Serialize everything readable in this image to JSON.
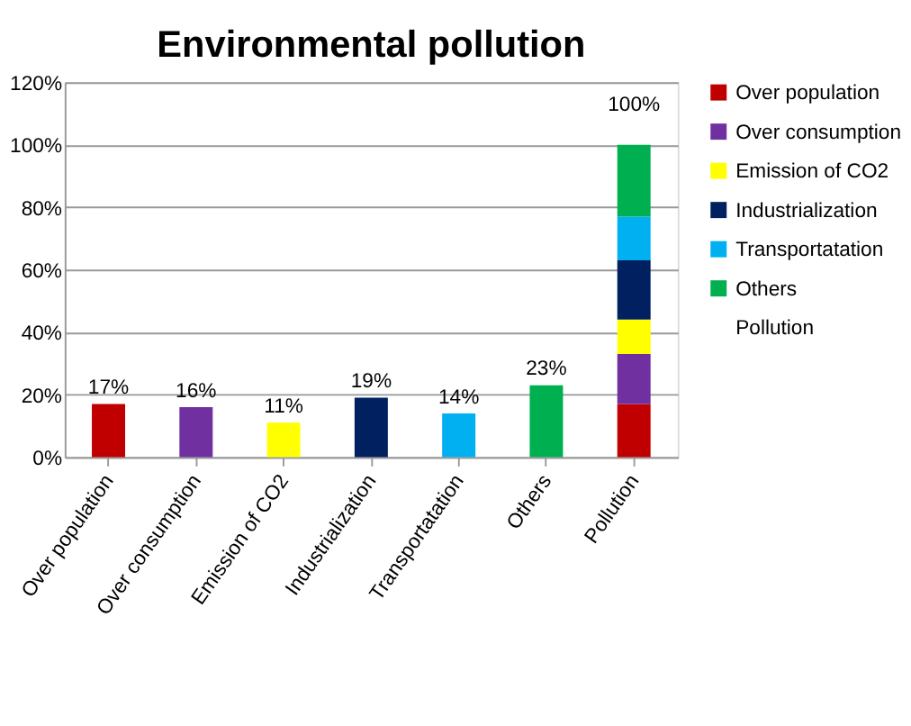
{
  "chart_data": {
    "type": "bar",
    "title": "Environmental pollution",
    "stacked": true,
    "categories": [
      "Over population",
      "Over consumption",
      "Emission of CO2",
      "Industrialization",
      "Transportatation",
      "Others",
      "Pollution"
    ],
    "series": [
      {
        "name": "Over population",
        "color": "#c00000",
        "values": [
          17,
          null,
          null,
          null,
          null,
          null,
          17
        ],
        "value_labels": [
          "17%",
          null,
          null,
          null,
          null,
          null,
          null
        ]
      },
      {
        "name": "Over consumption",
        "color": "#7030a0",
        "values": [
          null,
          16,
          null,
          null,
          null,
          null,
          16
        ],
        "value_labels": [
          null,
          "16%",
          null,
          null,
          null,
          null,
          null
        ]
      },
      {
        "name": "Emission of CO2",
        "color": "#ffff00",
        "values": [
          null,
          null,
          11,
          null,
          null,
          null,
          11
        ],
        "value_labels": [
          null,
          null,
          "11%",
          null,
          null,
          null,
          null
        ]
      },
      {
        "name": "Industrialization",
        "color": "#002060",
        "values": [
          null,
          null,
          null,
          19,
          null,
          null,
          19
        ],
        "value_labels": [
          null,
          null,
          null,
          "19%",
          null,
          null,
          null
        ]
      },
      {
        "name": "Transportatation",
        "color": "#00b0f0",
        "values": [
          null,
          null,
          null,
          null,
          14,
          null,
          14
        ],
        "value_labels": [
          null,
          null,
          null,
          null,
          "14%",
          null,
          null
        ]
      },
      {
        "name": "Others",
        "color": "#00b050",
        "values": [
          null,
          null,
          null,
          null,
          null,
          23,
          23
        ],
        "value_labels": [
          null,
          null,
          null,
          null,
          null,
          "23%",
          null
        ]
      },
      {
        "name": "Pollution",
        "values": [
          null,
          null,
          null,
          null,
          null,
          null,
          null
        ]
      }
    ],
    "totals": [
      null,
      null,
      null,
      null,
      null,
      null,
      "100%"
    ],
    "ylim": [
      0,
      120
    ],
    "yticks": [
      {
        "value": 0,
        "label": "0%"
      },
      {
        "value": 20,
        "label": "20%"
      },
      {
        "value": 40,
        "label": "40%"
      },
      {
        "value": 60,
        "label": "60%"
      },
      {
        "value": 80,
        "label": "80%"
      },
      {
        "value": 100,
        "label": "100%"
      },
      {
        "value": 120,
        "label": "120%"
      }
    ],
    "grid": "y",
    "legend": "right"
  }
}
